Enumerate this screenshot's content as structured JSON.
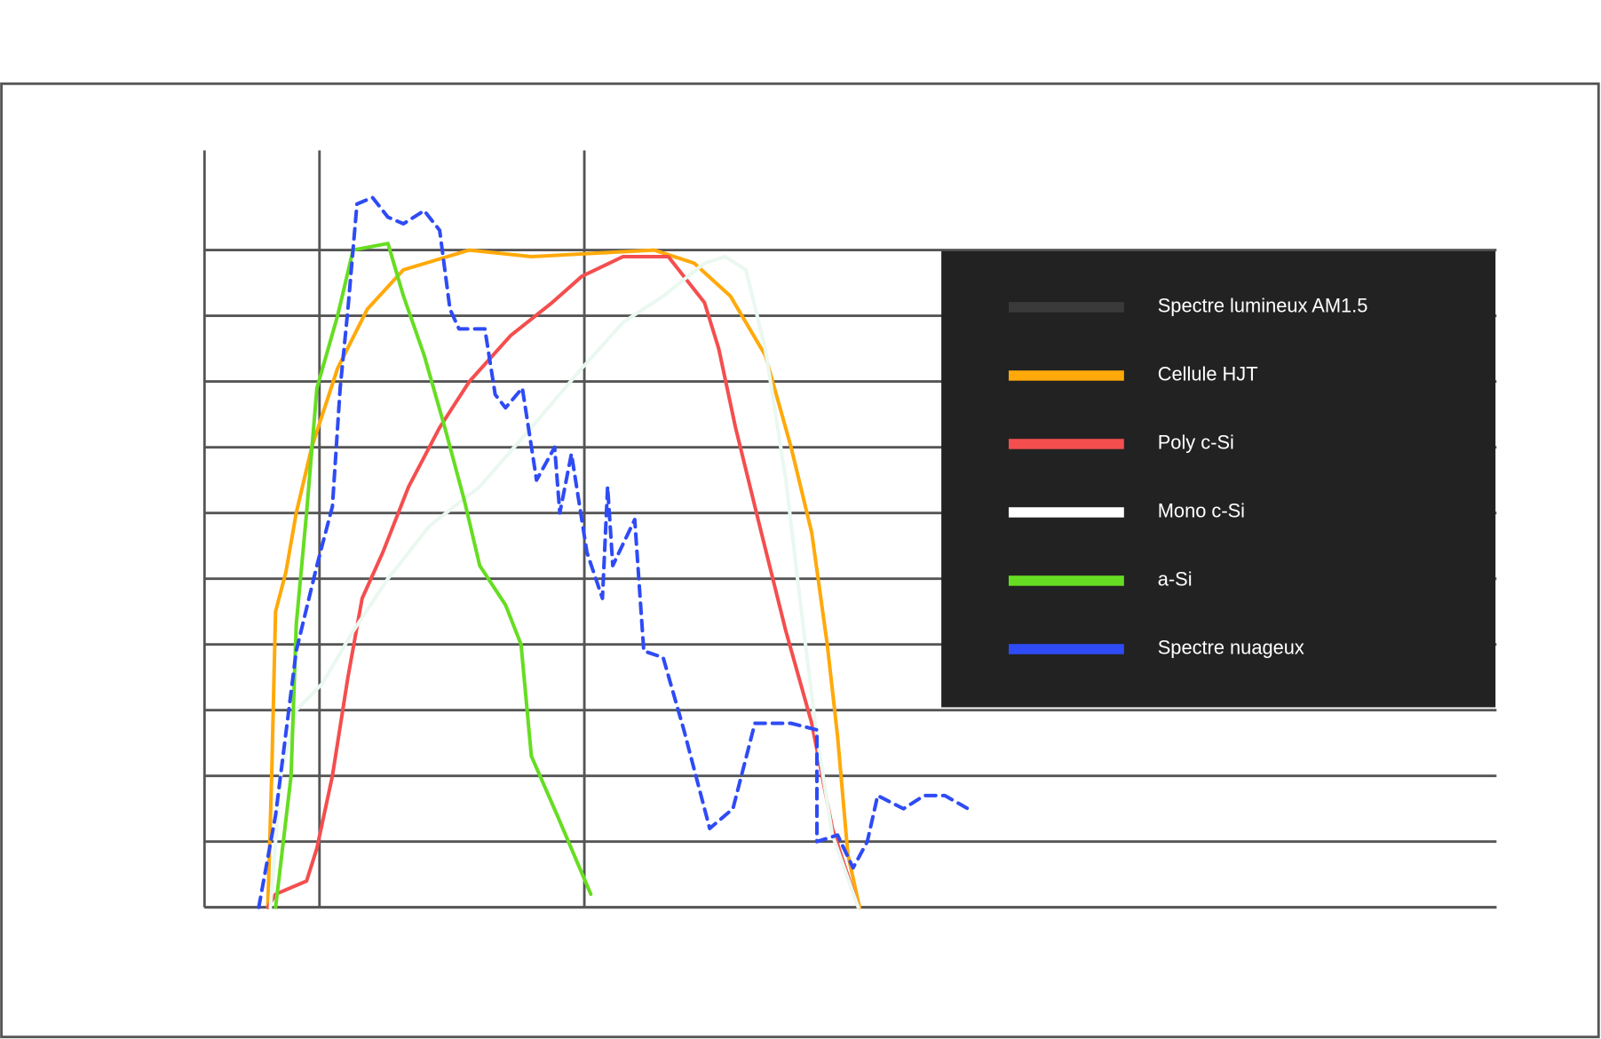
{
  "chart_data": {
    "type": "line",
    "xlim": [
      0,
      100
    ],
    "xticks": [
      8.9,
      29.4
    ],
    "ylim": [
      0,
      11.5
    ],
    "yticks": [
      0,
      1,
      2,
      3,
      4,
      5,
      6,
      7,
      8,
      9,
      10
    ],
    "grid": true,
    "legend": "upper right",
    "series": [
      {
        "name": "Spectre lumineux AM1.5",
        "color": "#3a3a3a",
        "x": [],
        "values": []
      },
      {
        "name": "Cellule HJT",
        "color": "#ffa90a",
        "x": [
          4.9,
          5.2,
          5.5,
          6.3,
          7.1,
          8.3,
          10.3,
          12.6,
          15.4,
          20.5,
          25.3,
          34.8,
          37.9,
          40.7,
          43.4,
          45.4,
          47.0,
          48.2,
          49.0,
          49.8,
          50.7
        ],
        "values": [
          0,
          2.0,
          4.5,
          5.1,
          6.0,
          7.0,
          8.2,
          9.1,
          9.7,
          10.0,
          9.9,
          10.0,
          9.8,
          9.3,
          8.4,
          7.0,
          5.7,
          4.0,
          2.6,
          0.8,
          0
        ]
      },
      {
        "name": "Poly c-Si",
        "color": "#f44e4e",
        "x": [
          4.9,
          5.5,
          7.9,
          8.7,
          9.9,
          11.1,
          12.2,
          13.8,
          15.8,
          18.2,
          20.5,
          23.7,
          26.9,
          29.2,
          32.4,
          35.9,
          38.7,
          39.8,
          41.1,
          43.1,
          45.0,
          47.0,
          48.6,
          50.6
        ],
        "values": [
          0,
          0.2,
          0.4,
          0.9,
          2.0,
          3.5,
          4.7,
          5.4,
          6.4,
          7.3,
          8.0,
          8.7,
          9.2,
          9.6,
          9.9,
          9.9,
          9.2,
          8.5,
          7.3,
          5.7,
          4.2,
          2.8,
          1.2,
          0
        ]
      },
      {
        "name": "Mono c-Si",
        "color": "#eaf8f0",
        "x": [
          5.1,
          5.9,
          7.1,
          9.1,
          11.5,
          14.2,
          17.4,
          21.3,
          25.3,
          29.2,
          32.4,
          35.5,
          38.7,
          40.3,
          41.9,
          43.4,
          45.0,
          46.2,
          47.4,
          48.6,
          50.6
        ],
        "values": [
          0,
          2.0,
          3.0,
          3.4,
          4.2,
          5.0,
          5.8,
          6.4,
          7.3,
          8.2,
          8.9,
          9.3,
          9.8,
          9.9,
          9.7,
          8.5,
          6.5,
          4.5,
          2.6,
          1.1,
          0
        ]
      },
      {
        "name": "a-Si",
        "color": "#66dd22",
        "x": [
          5.5,
          6.7,
          7.1,
          7.9,
          8.7,
          10.3,
          11.5,
          14.2,
          15.4,
          17.0,
          18.6,
          20.1,
          21.3,
          23.3,
          24.5,
          25.3,
          27.3,
          29.9
        ],
        "values": [
          0,
          2.0,
          4.3,
          6.0,
          7.9,
          9.0,
          10.0,
          10.1,
          9.3,
          8.4,
          7.3,
          6.2,
          5.2,
          4.6,
          4.0,
          2.3,
          1.4,
          0.2
        ]
      },
      {
        "name": "Spectre nuageux",
        "color": "#2e4bf5",
        "style": "dashed",
        "x": [
          4.2,
          5.5,
          7.1,
          8.7,
          9.9,
          10.5,
          11.1,
          11.8,
          13.0,
          14.2,
          15.4,
          17.0,
          18.2,
          19.0,
          19.7,
          21.7,
          22.5,
          23.3,
          24.6,
          25.7,
          27.1,
          27.5,
          28.4,
          29.6,
          30.8,
          31.2,
          31.6,
          33.3,
          34.0,
          35.5,
          37.1,
          39.1,
          40.9,
          42.6,
          45.4,
          47.4,
          47.4,
          49.0,
          50.2,
          51.3,
          52.1,
          54.1,
          55.7,
          57.3,
          59.1
        ],
        "values": [
          0,
          1.4,
          3.9,
          5.2,
          6.1,
          7.9,
          9.1,
          10.7,
          10.8,
          10.5,
          10.4,
          10.6,
          10.3,
          9.1,
          8.8,
          8.8,
          7.8,
          7.6,
          7.9,
          6.5,
          7.0,
          6.0,
          6.9,
          5.4,
          4.7,
          6.4,
          5.2,
          5.9,
          3.9,
          3.8,
          2.7,
          1.2,
          1.5,
          2.8,
          2.8,
          2.7,
          1.0,
          1.1,
          0.6,
          1.0,
          1.7,
          1.5,
          1.7,
          1.7,
          1.5
        ]
      }
    ]
  }
}
